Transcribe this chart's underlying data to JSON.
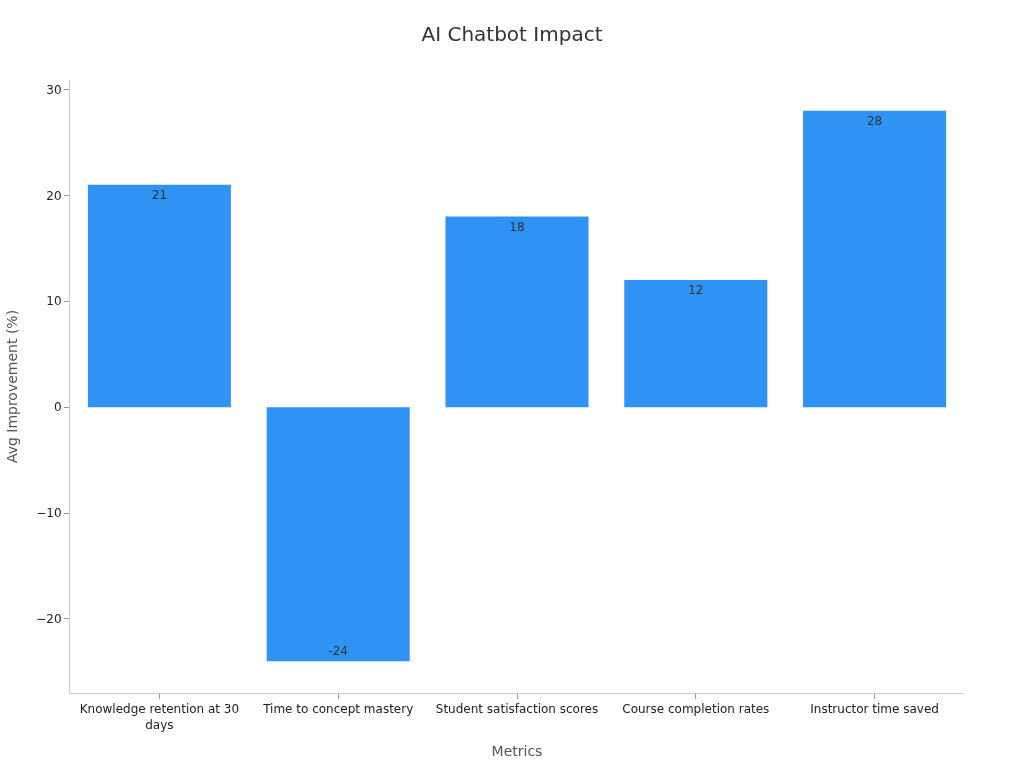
{
  "chart_data": {
    "type": "bar",
    "title": "AI Chatbot Impact",
    "xlabel": "Metrics",
    "ylabel": "Avg Improvement (%)",
    "categories": [
      "Knowledge retention at 30 days",
      "Time to concept mastery",
      "Student satisfaction scores",
      "Course completion rates",
      "Instructor time saved"
    ],
    "values": [
      21,
      -24,
      18,
      12,
      28
    ],
    "color": "#2e93f5",
    "ylim": [
      -27,
      30.9
    ],
    "yticks": [
      {
        "value": -20,
        "label": "−20"
      },
      {
        "value": -10,
        "label": "−10"
      },
      0,
      10,
      20,
      30
    ],
    "data_labels": true
  }
}
